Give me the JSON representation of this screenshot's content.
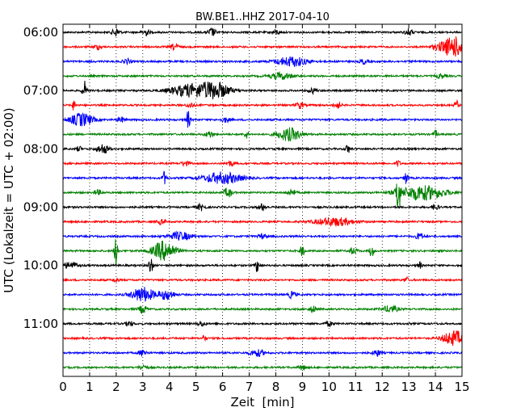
{
  "chart_data": {
    "type": "line",
    "title": "BW.BE1..HHZ 2017-04-10",
    "xlabel": "Zeit  [min]",
    "ylabel": "UTC (Lokalzeit = UTC + 02:00)",
    "xlim": [
      0,
      15
    ],
    "xticks": [
      0,
      1,
      2,
      3,
      4,
      5,
      6,
      7,
      8,
      9,
      10,
      11,
      12,
      13,
      14,
      15
    ],
    "xgrid": "dotted vertical at each minute",
    "row_interval_minutes": 15,
    "row_colors": [
      "#000000",
      "#ff0000",
      "#0000ff",
      "#008000"
    ],
    "yticks": [
      {
        "label": "06:00",
        "row": 0
      },
      {
        "label": "07:00",
        "row": 4
      },
      {
        "label": "08:00",
        "row": 8
      },
      {
        "label": "09:00",
        "row": 12
      },
      {
        "label": "10:00",
        "row": 16
      },
      {
        "label": "11:00",
        "row": 20
      }
    ],
    "traces": [
      {
        "start": "06:00",
        "color": "#000000",
        "events": [
          [
            2.0,
            5,
            0.1
          ],
          [
            3.1,
            4,
            0.1
          ],
          [
            5.6,
            5,
            0.1
          ],
          [
            8.0,
            3,
            0.1
          ],
          [
            13.0,
            4,
            0.1
          ]
        ]
      },
      {
        "start": "06:15",
        "color": "#ff0000",
        "events": [
          [
            1.3,
            3,
            0.1
          ],
          [
            4.2,
            4,
            0.1
          ],
          [
            14.7,
            12,
            0.4
          ]
        ]
      },
      {
        "start": "06:30",
        "color": "#0000ff",
        "events": [
          [
            2.4,
            3,
            0.1
          ],
          [
            8.6,
            6,
            0.4
          ],
          [
            11.3,
            3,
            0.1
          ]
        ]
      },
      {
        "start": "06:45",
        "color": "#008000",
        "events": [
          [
            8.2,
            4,
            0.3
          ],
          [
            14.2,
            3,
            0.1
          ]
        ]
      },
      {
        "start": "07:00",
        "color": "#000000",
        "events": [
          [
            0.8,
            12,
            0.05
          ],
          [
            4.7,
            7,
            0.5
          ],
          [
            5.7,
            10,
            0.4
          ],
          [
            9.4,
            3,
            0.1
          ]
        ]
      },
      {
        "start": "07:15",
        "color": "#ff0000",
        "events": [
          [
            0.4,
            6,
            0.05
          ],
          [
            4.8,
            3,
            0.1
          ],
          [
            8.9,
            4,
            0.1
          ],
          [
            10.3,
            4,
            0.1
          ],
          [
            14.8,
            5,
            0.05
          ]
        ]
      },
      {
        "start": "07:30",
        "color": "#0000ff",
        "events": [
          [
            0.7,
            8,
            0.3
          ],
          [
            2.2,
            3,
            0.1
          ],
          [
            4.7,
            11,
            0.05
          ],
          [
            6.1,
            3,
            0.1
          ]
        ]
      },
      {
        "start": "07:45",
        "color": "#008000",
        "events": [
          [
            5.5,
            4,
            0.1
          ],
          [
            6.9,
            5,
            0.05
          ],
          [
            8.5,
            8,
            0.3
          ],
          [
            14.0,
            5,
            0.05
          ]
        ]
      },
      {
        "start": "08:00",
        "color": "#000000",
        "events": [
          [
            0.6,
            4,
            0.05
          ],
          [
            1.5,
            6,
            0.15
          ],
          [
            10.7,
            6,
            0.05
          ]
        ]
      },
      {
        "start": "08:15",
        "color": "#ff0000",
        "events": [
          [
            4.6,
            3,
            0.1
          ],
          [
            6.3,
            3,
            0.1
          ],
          [
            12.6,
            4,
            0.05
          ]
        ]
      },
      {
        "start": "08:30",
        "color": "#0000ff",
        "events": [
          [
            3.8,
            8,
            0.05
          ],
          [
            6.0,
            7,
            0.5
          ],
          [
            12.9,
            7,
            0.05
          ]
        ]
      },
      {
        "start": "08:45",
        "color": "#008000",
        "events": [
          [
            1.3,
            3,
            0.1
          ],
          [
            6.2,
            6,
            0.1
          ],
          [
            8.6,
            4,
            0.1
          ],
          [
            12.6,
            28,
            0.05
          ],
          [
            13.5,
            9,
            0.6
          ]
        ]
      },
      {
        "start": "09:00",
        "color": "#000000",
        "events": [
          [
            5.2,
            4,
            0.1
          ],
          [
            7.5,
            4,
            0.1
          ],
          [
            14.0,
            3,
            0.1
          ]
        ]
      },
      {
        "start": "09:15",
        "color": "#ff0000",
        "events": [
          [
            3.7,
            3,
            0.1
          ],
          [
            10.2,
            5,
            0.5
          ]
        ]
      },
      {
        "start": "09:30",
        "color": "#0000ff",
        "events": [
          [
            4.4,
            5,
            0.3
          ],
          [
            7.5,
            3,
            0.1
          ],
          [
            13.4,
            4,
            0.1
          ]
        ]
      },
      {
        "start": "09:45",
        "color": "#008000",
        "events": [
          [
            2.0,
            18,
            0.05
          ],
          [
            3.8,
            12,
            0.3
          ],
          [
            9.0,
            8,
            0.05
          ],
          [
            10.9,
            4,
            0.1
          ],
          [
            11.6,
            8,
            0.05
          ]
        ]
      },
      {
        "start": "10:00",
        "color": "#000000",
        "events": [
          [
            0.3,
            4,
            0.2
          ],
          [
            3.3,
            12,
            0.05
          ],
          [
            7.3,
            8,
            0.05
          ],
          [
            13.4,
            5,
            0.05
          ]
        ]
      },
      {
        "start": "10:15",
        "color": "#ff0000",
        "events": [
          [
            2.0,
            4,
            0.05
          ],
          [
            12.9,
            4,
            0.05
          ]
        ]
      },
      {
        "start": "10:30",
        "color": "#0000ff",
        "events": [
          [
            3.0,
            9,
            0.3
          ],
          [
            3.9,
            6,
            0.2
          ],
          [
            8.6,
            4,
            0.1
          ]
        ]
      },
      {
        "start": "10:45",
        "color": "#008000",
        "events": [
          [
            3.0,
            5,
            0.1
          ],
          [
            9.4,
            4,
            0.1
          ],
          [
            12.3,
            4,
            0.2
          ]
        ]
      },
      {
        "start": "11:00",
        "color": "#000000",
        "events": [
          [
            2.5,
            3,
            0.1
          ],
          [
            5.2,
            3,
            0.1
          ],
          [
            10.0,
            3,
            0.1
          ]
        ]
      },
      {
        "start": "11:15",
        "color": "#ff0000",
        "events": [
          [
            5.3,
            4,
            0.05
          ],
          [
            14.7,
            9,
            0.3
          ]
        ]
      },
      {
        "start": "11:30",
        "color": "#0000ff",
        "events": [
          [
            3.0,
            4,
            0.1
          ],
          [
            7.3,
            4,
            0.2
          ],
          [
            11.8,
            4,
            0.1
          ]
        ]
      },
      {
        "start": "11:45",
        "color": "#008000",
        "events": [
          [
            3.0,
            3,
            0.1
          ],
          [
            9.0,
            3,
            0.1
          ]
        ]
      }
    ]
  }
}
